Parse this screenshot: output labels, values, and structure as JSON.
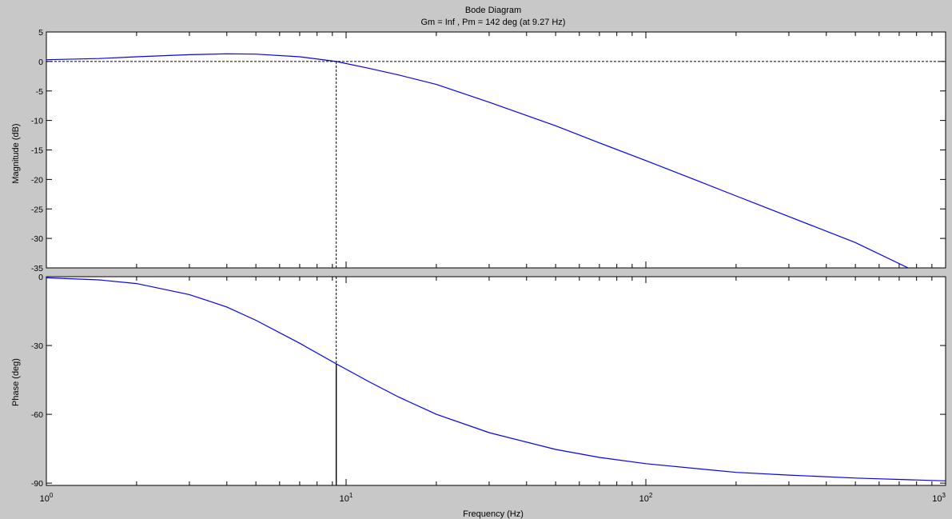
{
  "chart_data": {
    "type": "line",
    "title": "Bode Diagram",
    "subtitle": "Gm = Inf ,  Pm = 142 deg (at 9.27 Hz)",
    "xlabel": "Frequency  (Hz)",
    "x_scale": "log",
    "xlim": [
      1,
      1000
    ],
    "x_ticks": [
      {
        "base": "10",
        "exp": "0",
        "value": 1
      },
      {
        "base": "10",
        "exp": "1",
        "value": 10
      },
      {
        "base": "10",
        "exp": "2",
        "value": 100
      },
      {
        "base": "10",
        "exp": "3",
        "value": 1000
      }
    ],
    "crossover_frequency": 9.27,
    "grid": false,
    "colors": {
      "curve": "#0000ff",
      "background": "#c8c8c8",
      "axes_bg": "#ffffff"
    },
    "magnitude": {
      "ylabel": "Magnitude (dB)",
      "ylim": [
        -35,
        5
      ],
      "y_ticks": [
        5,
        0,
        -5,
        -10,
        -15,
        -20,
        -25,
        -30,
        -35
      ],
      "zero_reference": 0,
      "x": [
        1,
        1.5,
        2,
        3,
        4,
        5,
        7,
        9.27,
        12,
        15,
        20,
        30,
        50,
        70,
        100,
        150,
        200,
        300,
        500,
        750
      ],
      "y": [
        0.3,
        0.5,
        0.8,
        1.15,
        1.3,
        1.25,
        0.8,
        0.0,
        -1.2,
        -2.3,
        -3.9,
        -6.9,
        -10.9,
        -13.8,
        -16.8,
        -20.3,
        -22.8,
        -26.3,
        -30.7,
        -35.0
      ]
    },
    "phase": {
      "ylabel": "Phase (deg)",
      "ylim": [
        -91,
        0
      ],
      "y_ticks": [
        0,
        -30,
        -60,
        -90
      ],
      "x": [
        1,
        1.5,
        2,
        3,
        4,
        5,
        7,
        9.27,
        12,
        15,
        20,
        30,
        50,
        70,
        100,
        200,
        300,
        500,
        1000
      ],
      "y": [
        -0.5,
        -1.4,
        -3.0,
        -7.8,
        -13.2,
        -19.0,
        -29.0,
        -38.0,
        -46.0,
        -52.5,
        -60.0,
        -68.0,
        -75.3,
        -78.8,
        -81.5,
        -85.3,
        -86.5,
        -87.8,
        -89.0
      ],
      "margin_marker": {
        "x": 9.27,
        "y": -38.0
      }
    }
  }
}
